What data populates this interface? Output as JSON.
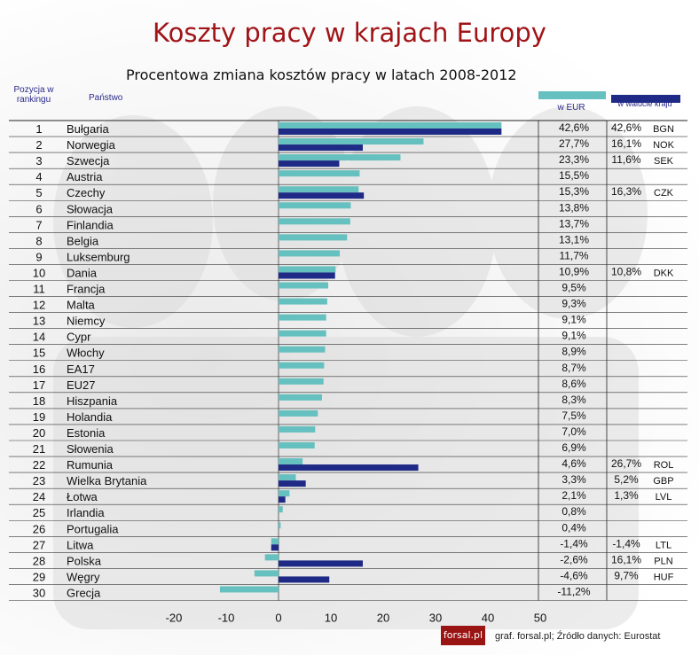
{
  "chart_data": {
    "type": "bar",
    "title": "Koszty pracy w krajach Europy",
    "subtitle": "Procentowa zmiana kosztów pracy w latach 2008-2012",
    "headers": {
      "rank": "Pozycja w rankingu",
      "country": "Państwo"
    },
    "legend": {
      "eur": "w EUR",
      "local": "w walucie kraju"
    },
    "xlim": [
      -20,
      50
    ],
    "xticks": [
      -20,
      -10,
      0,
      10,
      20,
      30,
      40,
      50
    ],
    "colors": {
      "eur": "#66c0c0",
      "local": "#1e2a86"
    },
    "rows": [
      {
        "rank": "1",
        "country": "Bułgaria",
        "eur": 42.6,
        "eur_label": "42,6%",
        "local": 42.6,
        "local_label": "42,6%",
        "currency": "BGN"
      },
      {
        "rank": "2",
        "country": "Norwegia",
        "eur": 27.7,
        "eur_label": "27,7%",
        "local": 16.1,
        "local_label": "16,1%",
        "currency": "NOK"
      },
      {
        "rank": "3",
        "country": "Szwecja",
        "eur": 23.3,
        "eur_label": "23,3%",
        "local": 11.6,
        "local_label": "11,6%",
        "currency": "SEK"
      },
      {
        "rank": "4",
        "country": "Austria",
        "eur": 15.5,
        "eur_label": "15,5%"
      },
      {
        "rank": "5",
        "country": "Czechy",
        "eur": 15.3,
        "eur_label": "15,3%",
        "local": 16.3,
        "local_label": "16,3%",
        "currency": "CZK"
      },
      {
        "rank": "6",
        "country": "Słowacja",
        "eur": 13.8,
        "eur_label": "13,8%"
      },
      {
        "rank": "7",
        "country": "Finlandia",
        "eur": 13.7,
        "eur_label": "13,7%"
      },
      {
        "rank": "8",
        "country": "Belgia",
        "eur": 13.1,
        "eur_label": "13,1%"
      },
      {
        "rank": "9",
        "country": "Luksemburg",
        "eur": 11.7,
        "eur_label": "11,7%"
      },
      {
        "rank": "10",
        "country": "Dania",
        "eur": 10.9,
        "eur_label": "10,9%",
        "local": 10.8,
        "local_label": "10,8%",
        "currency": "DKK"
      },
      {
        "rank": "11",
        "country": "Francja",
        "eur": 9.5,
        "eur_label": "9,5%"
      },
      {
        "rank": "12",
        "country": "Malta",
        "eur": 9.3,
        "eur_label": "9,3%"
      },
      {
        "rank": "13",
        "country": "Niemcy",
        "eur": 9.1,
        "eur_label": "9,1%"
      },
      {
        "rank": "14",
        "country": "Cypr",
        "eur": 9.1,
        "eur_label": "9,1%"
      },
      {
        "rank": "15",
        "country": "Włochy",
        "eur": 8.9,
        "eur_label": "8,9%"
      },
      {
        "rank": "16",
        "country": "EA17",
        "eur": 8.7,
        "eur_label": "8,7%"
      },
      {
        "rank": "17",
        "country": "EU27",
        "eur": 8.6,
        "eur_label": "8,6%"
      },
      {
        "rank": "18",
        "country": "Hiszpania",
        "eur": 8.3,
        "eur_label": "8,3%"
      },
      {
        "rank": "19",
        "country": "Holandia",
        "eur": 7.5,
        "eur_label": "7,5%"
      },
      {
        "rank": "20",
        "country": "Estonia",
        "eur": 7.0,
        "eur_label": "7,0%"
      },
      {
        "rank": "21",
        "country": "Słowenia",
        "eur": 6.9,
        "eur_label": "6,9%"
      },
      {
        "rank": "22",
        "country": "Rumunia",
        "eur": 4.6,
        "eur_label": "4,6%",
        "local": 26.7,
        "local_label": "26,7%",
        "currency": "ROL"
      },
      {
        "rank": "23",
        "country": "Wielka Brytania",
        "eur": 3.3,
        "eur_label": "3,3%",
        "local": 5.2,
        "local_label": "5,2%",
        "currency": "GBP"
      },
      {
        "rank": "24",
        "country": "Łotwa",
        "eur": 2.1,
        "eur_label": "2,1%",
        "local": 1.3,
        "local_label": "1,3%",
        "currency": "LVL"
      },
      {
        "rank": "25",
        "country": "Irlandia",
        "eur": 0.8,
        "eur_label": "0,8%"
      },
      {
        "rank": "26",
        "country": "Portugalia",
        "eur": 0.4,
        "eur_label": "0,4%"
      },
      {
        "rank": "27",
        "country": "Litwa",
        "eur": -1.4,
        "eur_label": "-1,4%",
        "local": -1.4,
        "local_label": "-1,4%",
        "currency": "LTL"
      },
      {
        "rank": "28",
        "country": "Polska",
        "eur": -2.6,
        "eur_label": "-2,6%",
        "local": 16.1,
        "local_label": "16,1%",
        "currency": "PLN"
      },
      {
        "rank": "29",
        "country": "Węgry",
        "eur": -4.6,
        "eur_label": "-4,6%",
        "local": 9.7,
        "local_label": "9,7%",
        "currency": "HUF"
      },
      {
        "rank": "30",
        "country": "Grecja",
        "eur": -11.2,
        "eur_label": "-11,2%"
      }
    ]
  },
  "footer": {
    "logo": "forsal.pl",
    "source": "graf. forsal.pl;  Źródło danych: Eurostat"
  }
}
